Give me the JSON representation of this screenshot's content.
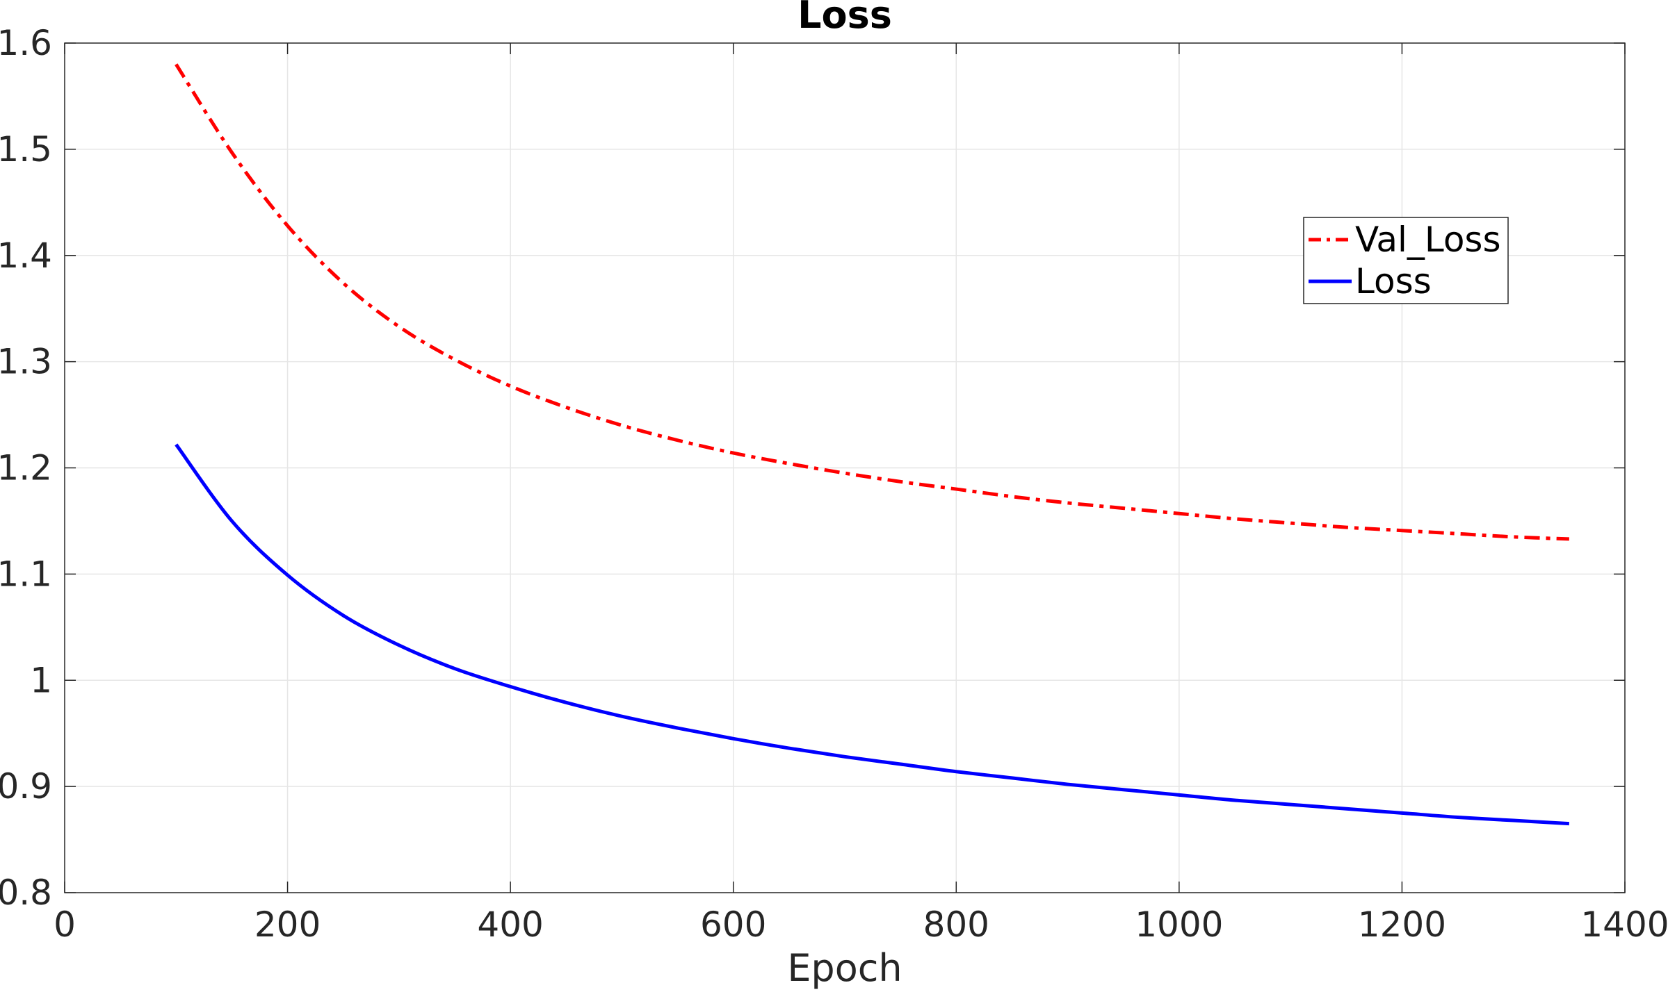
{
  "chart_data": {
    "type": "line",
    "title": "Loss",
    "xlabel": "Epoch",
    "ylabel": "",
    "xlim": [
      0,
      1400
    ],
    "ylim": [
      0.8,
      1.6
    ],
    "xticks": [
      0,
      200,
      400,
      600,
      800,
      1000,
      1200,
      1400
    ],
    "xtick_labels": [
      "0",
      "200",
      "400",
      "600",
      "800",
      "1000",
      "1200",
      "1400"
    ],
    "yticks": [
      0.8,
      0.9,
      1.0,
      1.1,
      1.2,
      1.3,
      1.4,
      1.5,
      1.6
    ],
    "ytick_labels": [
      "0.8",
      "0.9",
      "1",
      "1.1",
      "1.2",
      "1.3",
      "1.4",
      "1.5",
      "1.6"
    ],
    "grid": true,
    "legend_position": "upper-right",
    "x": [
      100,
      150,
      200,
      250,
      300,
      350,
      400,
      450,
      500,
      550,
      600,
      650,
      700,
      750,
      800,
      850,
      900,
      950,
      1000,
      1050,
      1100,
      1150,
      1200,
      1250,
      1300,
      1350
    ],
    "series": [
      {
        "name": "Val_Loss",
        "color": "#ff0000",
        "style": "dash-dot",
        "values": [
          1.58,
          1.497,
          1.428,
          1.374,
          1.333,
          1.302,
          1.277,
          1.257,
          1.24,
          1.226,
          1.214,
          1.204,
          1.195,
          1.187,
          1.18,
          1.173,
          1.167,
          1.162,
          1.157,
          1.152,
          1.148,
          1.144,
          1.141,
          1.138,
          1.135,
          1.133
        ]
      },
      {
        "name": "Loss",
        "color": "#0000ff",
        "style": "solid",
        "values": [
          1.222,
          1.15,
          1.099,
          1.061,
          1.033,
          1.011,
          0.994,
          0.979,
          0.966,
          0.955,
          0.945,
          0.936,
          0.928,
          0.921,
          0.914,
          0.908,
          0.902,
          0.897,
          0.892,
          0.887,
          0.883,
          0.879,
          0.875,
          0.871,
          0.868,
          0.865
        ]
      }
    ]
  }
}
